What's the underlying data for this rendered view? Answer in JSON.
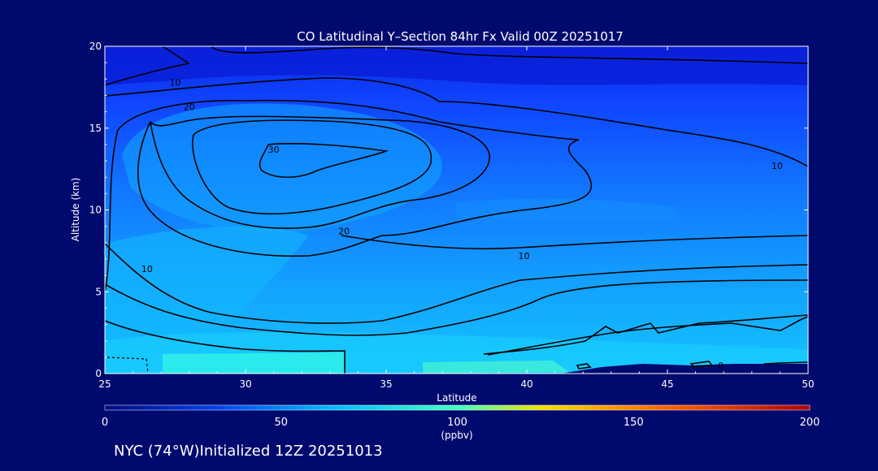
{
  "chart_data": {
    "type": "contour",
    "title": "CO Latitudinal Y–Section 84hr  Fx Valid 00Z 20251017",
    "xlabel": "Latitude",
    "ylabel": "Altitude (km)",
    "xlim": [
      25,
      50
    ],
    "ylim": [
      0,
      20
    ],
    "x_ticks": [
      "25",
      "30",
      "35",
      "40",
      "45",
      "50"
    ],
    "y_ticks": [
      "0",
      "5",
      "10",
      "15",
      "20"
    ],
    "contour_levels": [
      0,
      10,
      20,
      30
    ],
    "contour_labels": [
      {
        "text": "10",
        "x": 27.5,
        "y": 17.8
      },
      {
        "text": "20",
        "x": 28.0,
        "y": 16.3
      },
      {
        "text": "30",
        "x": 31.0,
        "y": 13.7
      },
      {
        "text": "20",
        "x": 33.5,
        "y": 8.7
      },
      {
        "text": "10",
        "x": 39.9,
        "y": 7.2
      },
      {
        "text": "10",
        "x": 26.5,
        "y": 6.4
      },
      {
        "text": "10",
        "x": 48.9,
        "y": 12.7
      },
      {
        "text": "0",
        "x": 46.9,
        "y": 0.5
      }
    ],
    "colorbar": {
      "min": 0,
      "max": 200,
      "ticks": [
        "0",
        "50",
        "100",
        "150",
        "200"
      ],
      "unit": "(ppbv)",
      "colors": [
        "#000b80",
        "#0040f0",
        "#00c0ff",
        "#40ffc0",
        "#f0e000",
        "#ff6000",
        "#b00000"
      ]
    }
  },
  "footer": {
    "station": "NYC (74°W)Initialized 12Z 20251013"
  }
}
